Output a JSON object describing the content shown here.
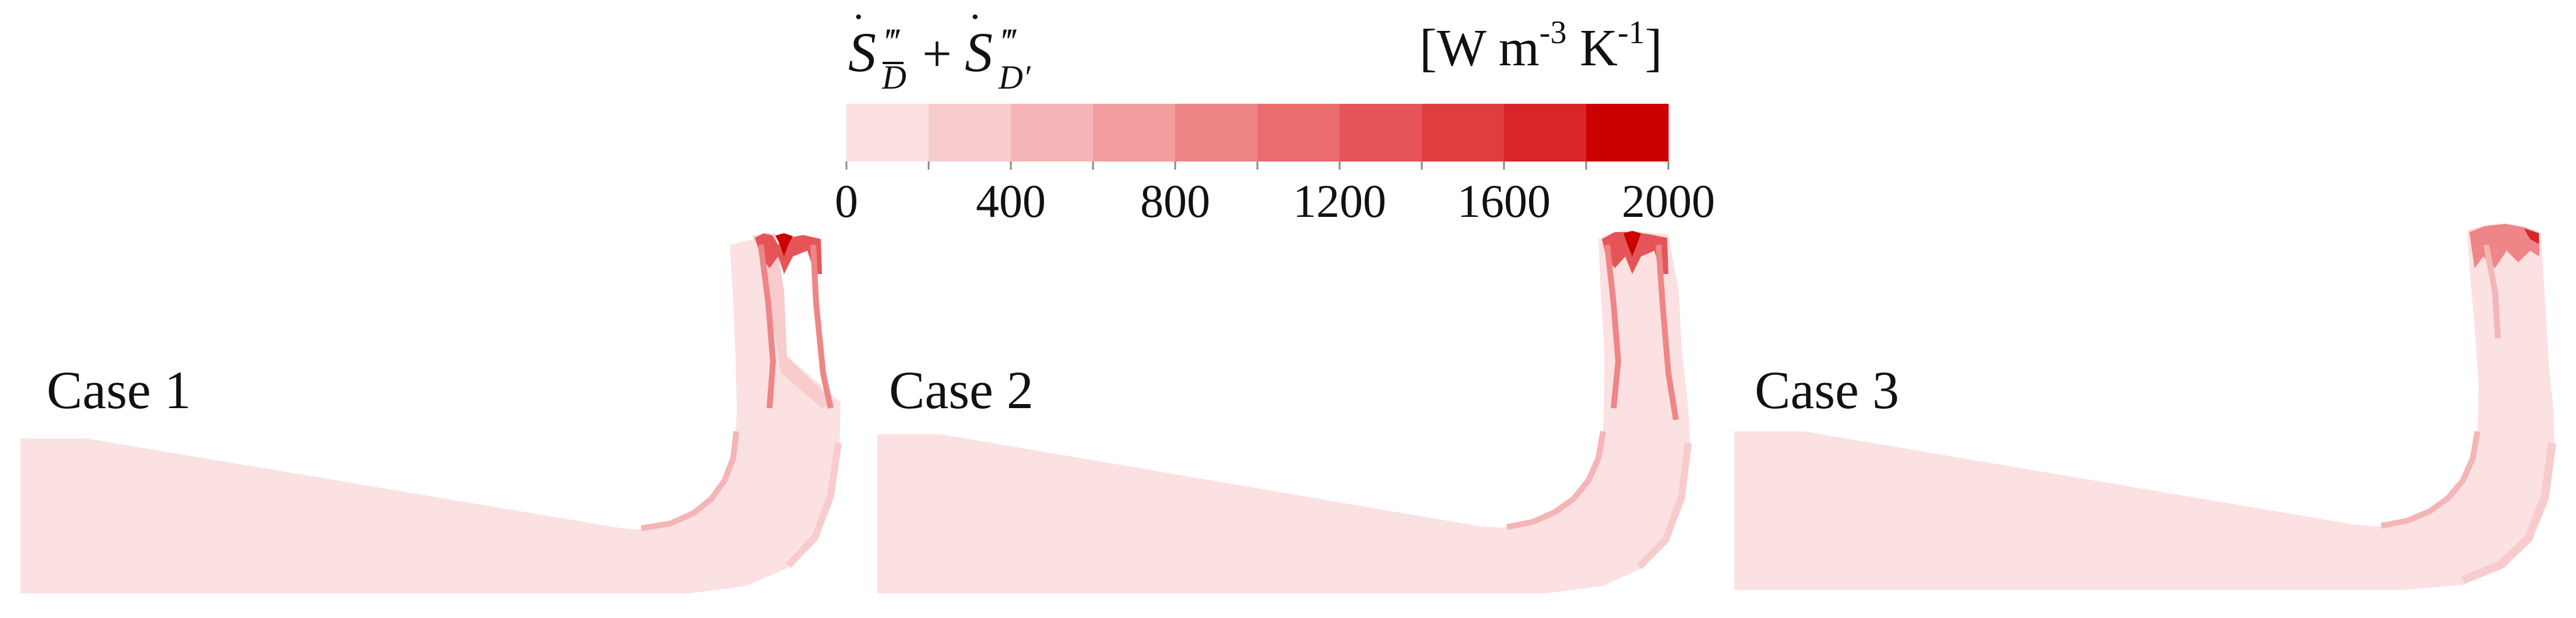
{
  "colorbar": {
    "quantity_label": "Ṡ‴ + Ṡ‴",
    "quantity_parts": {
      "symbol": "S",
      "prime": "‴",
      "plus": "+",
      "subscript_1": "D",
      "subscript_2": "D′"
    },
    "units_label": "[W m-3 K-1]",
    "units_parts": {
      "open": "[W m",
      "exp_1": "-3",
      "mid": " K",
      "exp_2": "-1",
      "close": "]"
    },
    "min": 0,
    "max": 2000,
    "tick_labels": [
      "0",
      "400",
      "800",
      "1200",
      "1600",
      "2000"
    ],
    "levels": 10,
    "colors": [
      "#fbe1e2",
      "#f8cbcc",
      "#f5b4b5",
      "#f29d9e",
      "#ee8587",
      "#ea6d6f",
      "#e55557",
      "#e03d40",
      "#d92528",
      "#cc0000"
    ]
  },
  "cases": [
    {
      "label": "Case 1"
    },
    {
      "label": "Case 2"
    },
    {
      "label": "Case 3"
    }
  ],
  "colors": {
    "background_field": "#fbe1e2",
    "text": "#111111"
  }
}
